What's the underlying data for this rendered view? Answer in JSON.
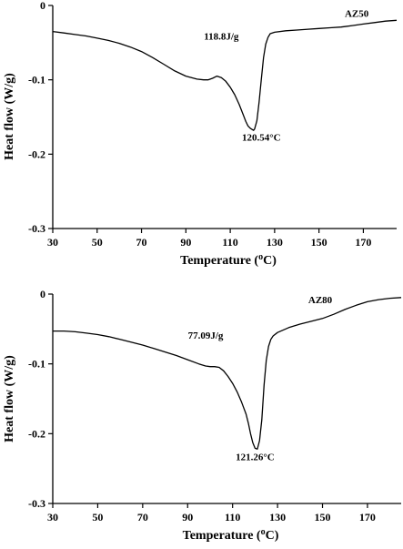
{
  "chart_data": [
    {
      "type": "line",
      "xlabel": "Temperature (",
      "xlabel_sup": "o",
      "xlabel_end": "C)",
      "ylabel": "Heat flow (W/g)",
      "xlim": [
        30,
        185
      ],
      "ylim": [
        -0.3,
        0
      ],
      "xticks": [
        30,
        50,
        70,
        90,
        110,
        130,
        150,
        170
      ],
      "yticks": [
        0,
        -0.1,
        -0.2,
        -0.3
      ],
      "ytick_labels": [
        "0",
        "-0.1",
        "-0.2",
        "-0.3"
      ],
      "grid": false,
      "series": [
        {
          "name": "AZ50",
          "x": [
            30,
            35,
            40,
            45,
            50,
            55,
            60,
            65,
            70,
            75,
            80,
            85,
            90,
            95,
            98,
            100,
            102,
            104,
            106,
            108,
            110,
            112,
            114,
            116,
            117,
            118,
            119,
            120,
            120.5,
            121,
            122,
            123,
            124,
            125,
            126,
            127,
            128,
            130,
            135,
            140,
            145,
            150,
            155,
            160,
            165,
            170,
            175,
            180,
            185
          ],
          "y": [
            -0.035,
            -0.037,
            -0.039,
            -0.041,
            -0.044,
            -0.047,
            -0.051,
            -0.056,
            -0.062,
            -0.07,
            -0.079,
            -0.088,
            -0.095,
            -0.099,
            -0.1,
            -0.1,
            -0.098,
            -0.095,
            -0.097,
            -0.102,
            -0.11,
            -0.12,
            -0.133,
            -0.148,
            -0.156,
            -0.162,
            -0.165,
            -0.167,
            -0.168,
            -0.166,
            -0.155,
            -0.13,
            -0.1,
            -0.07,
            -0.052,
            -0.043,
            -0.038,
            -0.036,
            -0.034,
            -0.033,
            -0.032,
            -0.031,
            -0.03,
            -0.029,
            -0.027,
            -0.025,
            -0.023,
            -0.021,
            -0.02
          ]
        }
      ],
      "annotations": [
        {
          "text": "118.8J/g",
          "x": 106,
          "y": -0.046
        },
        {
          "text": "120.54°C",
          "x": 124,
          "y": -0.182
        },
        {
          "text": "AZ50",
          "x": 167,
          "y": -0.015
        }
      ]
    },
    {
      "type": "line",
      "xlabel": "Temperature (",
      "xlabel_sup": "o",
      "xlabel_end": "C)",
      "ylabel": "Heat flow (W/g)",
      "xlim": [
        30,
        185
      ],
      "ylim": [
        -0.3,
        0
      ],
      "xticks": [
        30,
        50,
        70,
        90,
        110,
        130,
        150,
        170
      ],
      "yticks": [
        0,
        -0.1,
        -0.2,
        -0.3
      ],
      "ytick_labels": [
        "0",
        "-0.1",
        "-0.2",
        "-0.3"
      ],
      "grid": false,
      "series": [
        {
          "name": "AZ80",
          "x": [
            30,
            35,
            40,
            45,
            50,
            55,
            60,
            65,
            70,
            75,
            80,
            85,
            90,
            95,
            98,
            100,
            102,
            104,
            106,
            108,
            110,
            112,
            114,
            116,
            117,
            118,
            119,
            120,
            121,
            122,
            123,
            124,
            125,
            126,
            127,
            128,
            130,
            135,
            140,
            145,
            150,
            155,
            160,
            165,
            170,
            175,
            180,
            185
          ],
          "y": [
            -0.053,
            -0.053,
            -0.054,
            -0.056,
            -0.058,
            -0.061,
            -0.065,
            -0.069,
            -0.073,
            -0.078,
            -0.083,
            -0.088,
            -0.094,
            -0.1,
            -0.103,
            -0.104,
            -0.104,
            -0.105,
            -0.11,
            -0.118,
            -0.128,
            -0.14,
            -0.155,
            -0.172,
            -0.185,
            -0.2,
            -0.213,
            -0.221,
            -0.222,
            -0.21,
            -0.18,
            -0.13,
            -0.095,
            -0.075,
            -0.065,
            -0.06,
            -0.055,
            -0.048,
            -0.043,
            -0.039,
            -0.035,
            -0.029,
            -0.022,
            -0.016,
            -0.011,
            -0.008,
            -0.006,
            -0.005
          ]
        }
      ],
      "annotations": [
        {
          "text": "77.09J/g",
          "x": 98,
          "y": -0.064
        },
        {
          "text": "121.26°C",
          "x": 120,
          "y": -0.238
        },
        {
          "text": "AZ80",
          "x": 149,
          "y": -0.013
        }
      ]
    }
  ]
}
